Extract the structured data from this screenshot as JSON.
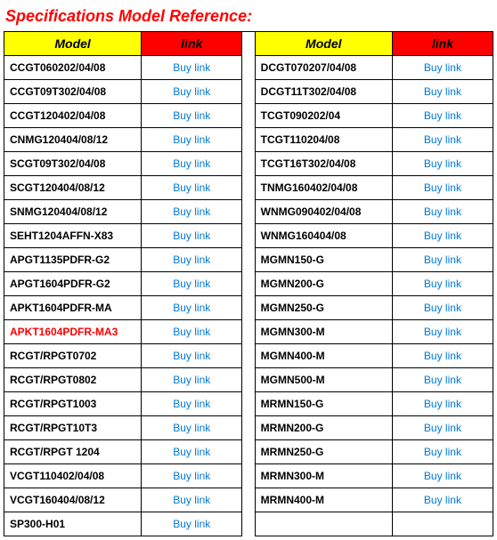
{
  "title": "Specifications Model Reference:",
  "headers": {
    "model": "Model",
    "link": "link"
  },
  "link_text": "Buy link",
  "colors": {
    "title": "#ff0000",
    "header_model_bg": "#ffff00",
    "header_link_bg": "#ff0000",
    "link_text": "#0078d4",
    "highlight_text": "#ff0000",
    "border": "#000000"
  },
  "left": [
    {
      "model": "CCGT060202/04/08",
      "highlight": false
    },
    {
      "model": "CCGT09T302/04/08",
      "highlight": false
    },
    {
      "model": "CCGT120402/04/08",
      "highlight": false
    },
    {
      "model": "CNMG120404/08/12",
      "highlight": false
    },
    {
      "model": "SCGT09T302/04/08",
      "highlight": false
    },
    {
      "model": "SCGT120404/08/12",
      "highlight": false
    },
    {
      "model": "SNMG120404/08/12",
      "highlight": false
    },
    {
      "model": "SEHT1204AFFN-X83",
      "highlight": false
    },
    {
      "model": "APGT1135PDFR-G2",
      "highlight": false
    },
    {
      "model": "APGT1604PDFR-G2",
      "highlight": false
    },
    {
      "model": "APKT1604PDFR-MA",
      "highlight": false
    },
    {
      "model": "APKT1604PDFR-MA3",
      "highlight": true
    },
    {
      "model": "RCGT/RPGT0702",
      "highlight": false
    },
    {
      "model": "RCGT/RPGT0802",
      "highlight": false
    },
    {
      "model": "RCGT/RPGT1003",
      "highlight": false
    },
    {
      "model": "RCGT/RPGT10T3",
      "highlight": false
    },
    {
      "model": "RCGT/RPGT 1204",
      "highlight": false
    },
    {
      "model": "VCGT110402/04/08",
      "highlight": false
    },
    {
      "model": "VCGT160404/08/12",
      "highlight": false
    },
    {
      "model": "SP300-H01",
      "highlight": false
    }
  ],
  "right": [
    {
      "model": "DCGT070207/04/08",
      "highlight": false
    },
    {
      "model": "DCGT11T302/04/08",
      "highlight": false
    },
    {
      "model": "TCGT090202/04",
      "highlight": false
    },
    {
      "model": "TCGT110204/08",
      "highlight": false
    },
    {
      "model": "TCGT16T302/04/08",
      "highlight": false
    },
    {
      "model": "TNMG160402/04/08",
      "highlight": false
    },
    {
      "model": "WNMG090402/04/08",
      "highlight": false
    },
    {
      "model": "WNMG160404/08",
      "highlight": false
    },
    {
      "model": "MGMN150-G",
      "highlight": false
    },
    {
      "model": "MGMN200-G",
      "highlight": false
    },
    {
      "model": "MGMN250-G",
      "highlight": false
    },
    {
      "model": "MGMN300-M",
      "highlight": false
    },
    {
      "model": "MGMN400-M",
      "highlight": false
    },
    {
      "model": "MGMN500-M",
      "highlight": false
    },
    {
      "model": "MRMN150-G",
      "highlight": false
    },
    {
      "model": "MRMN200-G",
      "highlight": false
    },
    {
      "model": "MRMN250-G",
      "highlight": false
    },
    {
      "model": "MRMN300-M",
      "highlight": false
    },
    {
      "model": "MRMN400-M",
      "highlight": false
    }
  ]
}
